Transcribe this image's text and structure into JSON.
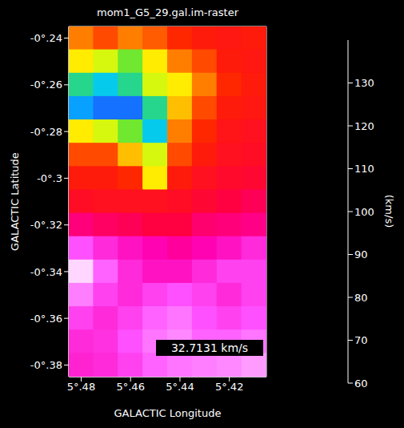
{
  "chart_data": {
    "type": "heatmap",
    "title": "mom1_G5_29.gal.im-raster",
    "x_label": "GALACTIC Longitude",
    "y_label": "GALACTIC Latitude",
    "x": [
      5.48,
      5.47,
      5.46,
      5.45,
      5.44,
      5.43,
      5.42,
      5.41
    ],
    "y": [
      -0.24,
      -0.25,
      -0.26,
      -0.27,
      -0.28,
      -0.29,
      -0.3,
      -0.31,
      -0.32,
      -0.33,
      -0.34,
      -0.35,
      -0.36,
      -0.37,
      -0.38
    ],
    "cells": [
      [
        85,
        88,
        85,
        87,
        90,
        92,
        93,
        92
      ],
      [
        80,
        78,
        75,
        80,
        85,
        88,
        92,
        93
      ],
      [
        72,
        70,
        72,
        78,
        80,
        85,
        90,
        92
      ],
      [
        68,
        66,
        66,
        72,
        82,
        88,
        92,
        93
      ],
      [
        80,
        78,
        75,
        70,
        85,
        90,
        94,
        95
      ],
      [
        88,
        88,
        82,
        78,
        88,
        92,
        95,
        96
      ],
      [
        92,
        92,
        90,
        80,
        92,
        95,
        97,
        98
      ],
      [
        96,
        95,
        95,
        95,
        96,
        98,
        100,
        102
      ],
      [
        105,
        103,
        102,
        100,
        100,
        104,
        105,
        106
      ],
      [
        120,
        115,
        112,
        110,
        108,
        110,
        112,
        115
      ],
      [
        135,
        122,
        115,
        112,
        112,
        115,
        118,
        118
      ],
      [
        125,
        118,
        115,
        118,
        120,
        118,
        115,
        118
      ],
      [
        118,
        115,
        118,
        122,
        124,
        120,
        118,
        120
      ],
      [
        115,
        116,
        120,
        124,
        126,
        122,
        122,
        124
      ],
      [
        114,
        115,
        118,
        122,
        124,
        125,
        126,
        128
      ]
    ],
    "xlim": [
      5.485,
      5.405
    ],
    "ylim": [
      -0.385,
      -0.235
    ],
    "xticks": [
      {
        "value": 5.48,
        "label": "5°.48"
      },
      {
        "value": 5.46,
        "label": "5°.46"
      },
      {
        "value": 5.44,
        "label": "5°.44"
      },
      {
        "value": 5.42,
        "label": "5°.42"
      }
    ],
    "yticks": [
      {
        "value": -0.24,
        "label": "-0°.24"
      },
      {
        "value": -0.26,
        "label": "-0°.26"
      },
      {
        "value": -0.28,
        "label": "-0°.28"
      },
      {
        "value": -0.3,
        "label": "-0°.3"
      },
      {
        "value": -0.32,
        "label": "-0°.32"
      },
      {
        "value": -0.34,
        "label": "-0°.34"
      },
      {
        "value": -0.36,
        "label": "-0°.36"
      },
      {
        "value": -0.38,
        "label": "-0°.38"
      }
    ],
    "colorbar_label": "(km/s)",
    "colorbar_range": [
      60,
      140
    ],
    "colorbar_ticks": [
      60,
      70,
      80,
      90,
      100,
      110,
      120,
      130
    ],
    "annotation": "32.7131 km/s",
    "grid": false
  }
}
